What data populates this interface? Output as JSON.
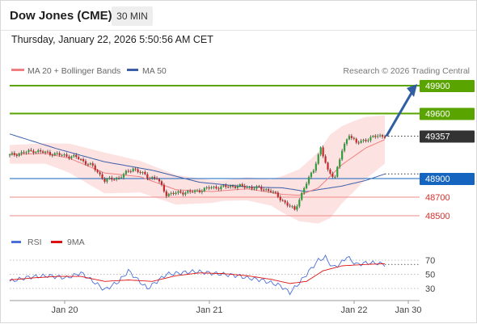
{
  "header": {
    "title": "Dow Jones (CME)",
    "timeframe": "30 MIN",
    "datetime": "Thursday, January 22, 2026 5:50:56 AM CET"
  },
  "legend": {
    "ma20": "MA 20 + Bollinger Bands",
    "ma50": "MA 50",
    "credit": "Research © 2026 Trading Central",
    "rsi": "RSI",
    "rsi_ma": "9MA"
  },
  "colors": {
    "ma20": "#f08080",
    "ma50": "#3d5fa8",
    "bands_fill": "#fde2e2",
    "resistance": "#5aa400",
    "support": "#ef8a8a",
    "pivot": "#1565c0",
    "price": "#333333",
    "up_candle": "#2e9e3a",
    "down_candle": "#c62828",
    "arrow": "#2f5ea3",
    "rsi": "#4a6fd8",
    "rsi_ma": "#dd1111"
  },
  "chart_data": [
    {
      "type": "candlestick",
      "title": "Dow Jones (CME)",
      "timeframe": "30 MIN",
      "ylim": [
        48460,
        49990
      ],
      "x_ticks": [
        "Jan 20",
        "Jan 21",
        "Jan 22",
        "Jan 30"
      ],
      "levels": [
        {
          "label": "49900",
          "value": 49900,
          "kind": "resistance"
        },
        {
          "label": "49600",
          "value": 49600,
          "kind": "resistance"
        },
        {
          "label": "49357",
          "value": 49357,
          "kind": "last-price"
        },
        {
          "label": "48900",
          "value": 48900,
          "kind": "pivot"
        },
        {
          "label": "48700",
          "value": 48700,
          "kind": "support"
        },
        {
          "label": "48500",
          "value": 48500,
          "kind": "support"
        }
      ],
      "forecast_target": 49900,
      "close_anchors": [
        [
          0,
          49150
        ],
        [
          10,
          49200
        ],
        [
          20,
          49160
        ],
        [
          28,
          49130
        ],
        [
          35,
          49030
        ],
        [
          40,
          48880
        ],
        [
          46,
          48910
        ],
        [
          52,
          49010
        ],
        [
          58,
          48920
        ],
        [
          62,
          48900
        ],
        [
          66,
          48730
        ],
        [
          72,
          48750
        ],
        [
          78,
          48760
        ],
        [
          84,
          48800
        ],
        [
          90,
          48810
        ],
        [
          96,
          48820
        ],
        [
          104,
          48800
        ],
        [
          110,
          48770
        ],
        [
          116,
          48640
        ],
        [
          120,
          48560
        ],
        [
          124,
          48800
        ],
        [
          128,
          49000
        ],
        [
          131,
          49230
        ],
        [
          134,
          48980
        ],
        [
          137,
          48920
        ],
        [
          140,
          49200
        ],
        [
          143,
          49380
        ],
        [
          146,
          49280
        ],
        [
          150,
          49320
        ],
        [
          155,
          49360
        ],
        [
          158,
          49357
        ]
      ],
      "series": [
        {
          "name": "MA 20 + Bollinger Bands",
          "anchors": [
            [
              0,
              49160
            ],
            [
              15,
              49170
            ],
            [
              25,
              49120
            ],
            [
              40,
              48960
            ],
            [
              55,
              48920
            ],
            [
              70,
              48780
            ],
            [
              85,
              48760
            ],
            [
              100,
              48790
            ],
            [
              115,
              48730
            ],
            [
              122,
              48720
            ],
            [
              130,
              48800
            ],
            [
              140,
              49050
            ],
            [
              150,
              49230
            ],
            [
              158,
              49320
            ]
          ],
          "band_width": [
            [
              0,
              100
            ],
            [
              15,
              110
            ],
            [
              28,
              170
            ],
            [
              40,
              220
            ],
            [
              55,
              170
            ],
            [
              70,
              160
            ],
            [
              90,
              110
            ],
            [
              110,
              140
            ],
            [
              122,
              280
            ],
            [
              135,
              450
            ],
            [
              145,
              380
            ],
            [
              158,
              260
            ]
          ]
        },
        {
          "name": "MA 50",
          "anchors": [
            [
              0,
              49380
            ],
            [
              20,
              49220
            ],
            [
              40,
              49080
            ],
            [
              60,
              48990
            ],
            [
              80,
              48860
            ],
            [
              100,
              48810
            ],
            [
              115,
              48800
            ],
            [
              125,
              48760
            ],
            [
              140,
              48820
            ],
            [
              150,
              48880
            ],
            [
              158,
              48950
            ]
          ]
        }
      ]
    },
    {
      "type": "line",
      "title": "RSI",
      "yticks": [
        30,
        50,
        70
      ],
      "ylim": [
        15,
        82
      ],
      "x_ticks": [
        "Jan 20",
        "Jan 21",
        "Jan 22",
        "Jan 30"
      ],
      "series": [
        {
          "name": "RSI",
          "anchors": [
            [
              0,
              40
            ],
            [
              8,
              46
            ],
            [
              16,
              48
            ],
            [
              24,
              45
            ],
            [
              30,
              52
            ],
            [
              36,
              38
            ],
            [
              40,
              28
            ],
            [
              46,
              40
            ],
            [
              50,
              55
            ],
            [
              54,
              42
            ],
            [
              58,
              30
            ],
            [
              62,
              40
            ],
            [
              66,
              50
            ],
            [
              72,
              52
            ],
            [
              78,
              54
            ],
            [
              84,
              52
            ],
            [
              90,
              50
            ],
            [
              96,
              48
            ],
            [
              100,
              45
            ],
            [
              106,
              42
            ],
            [
              110,
              38
            ],
            [
              114,
              34
            ],
            [
              118,
              24
            ],
            [
              122,
              38
            ],
            [
              126,
              54
            ],
            [
              130,
              70
            ],
            [
              133,
              74
            ],
            [
              136,
              60
            ],
            [
              139,
              64
            ],
            [
              142,
              75
            ],
            [
              146,
              64
            ],
            [
              150,
              66
            ],
            [
              154,
              66
            ],
            [
              158,
              64
            ]
          ]
        },
        {
          "name": "9MA",
          "anchors": [
            [
              0,
              42
            ],
            [
              10,
              45
            ],
            [
              20,
              47
            ],
            [
              30,
              47
            ],
            [
              40,
              40
            ],
            [
              50,
              42
            ],
            [
              60,
              40
            ],
            [
              70,
              48
            ],
            [
              80,
              52
            ],
            [
              90,
              51
            ],
            [
              100,
              48
            ],
            [
              110,
              43
            ],
            [
              118,
              37
            ],
            [
              125,
              40
            ],
            [
              132,
              55
            ],
            [
              140,
              62
            ],
            [
              150,
              64
            ],
            [
              158,
              65
            ]
          ]
        }
      ]
    }
  ]
}
